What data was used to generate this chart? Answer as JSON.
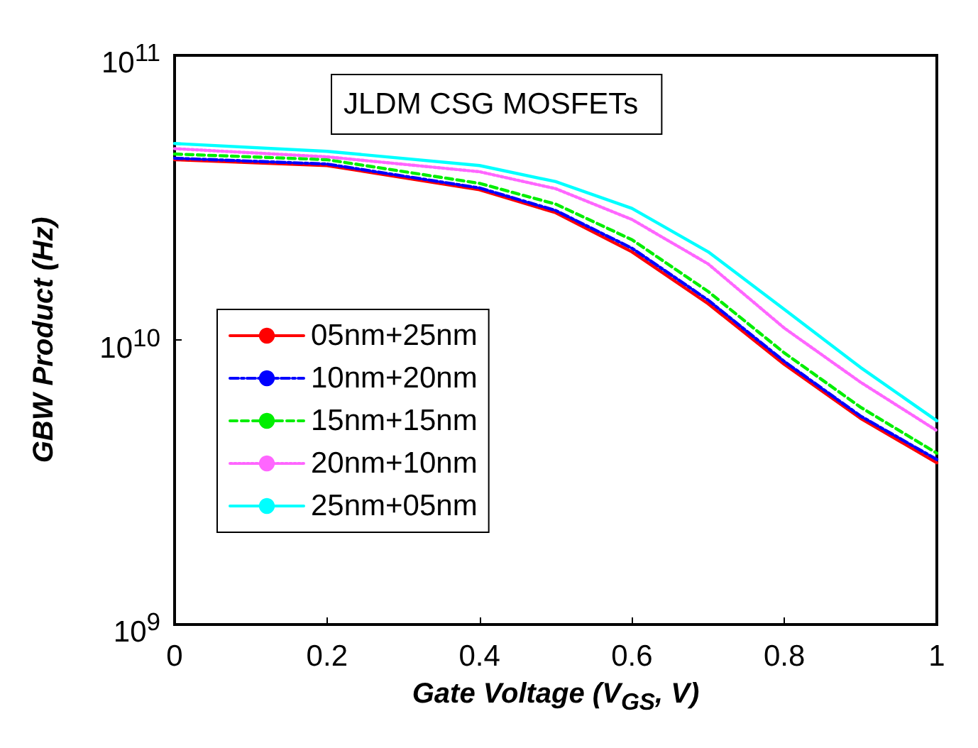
{
  "chart_data": {
    "type": "line",
    "annotations": [
      "JLDM CSG MOSFETs"
    ],
    "xlabel": "Gate Voltage (V$_{GS}$, V)",
    "ylabel": "GBW Product (Hz)",
    "x": [
      0,
      0.2,
      0.4,
      0.5,
      0.6,
      0.7,
      0.8,
      0.9,
      1
    ],
    "series": [
      {
        "name": "05nm+25nm",
        "color": "#ff0000",
        "line_style": "solid",
        "values": [
          43000000000.0,
          41000000000.0,
          33700000000.0,
          28000000000.0,
          20400000000.0,
          13400000000.0,
          8200000000.0,
          5300000000.0,
          3700000000.0
        ]
      },
      {
        "name": "10nm+20nm",
        "color": "#0000ff",
        "line_style": "dashdot",
        "values": [
          43500000000.0,
          41500000000.0,
          34200000000.0,
          28500000000.0,
          21000000000.0,
          13800000000.0,
          8400000000.0,
          5400000000.0,
          3800000000.0
        ]
      },
      {
        "name": "15nm+15nm",
        "color": "#00ee00",
        "line_style": "dashed",
        "values": [
          45000000000.0,
          43000000000.0,
          35500000000.0,
          30000000000.0,
          22500000000.0,
          14800000000.0,
          9000000000.0,
          5800000000.0,
          4000000000.0
        ]
      },
      {
        "name": "20nm+10nm",
        "color": "#ff66ff",
        "line_style": "dotted",
        "values": [
          47000000000.0,
          44000000000.0,
          39000000000.0,
          34000000000.0,
          26500000000.0,
          18500000000.0,
          11000000000.0,
          7100000000.0,
          4800000000.0
        ]
      },
      {
        "name": "25nm+05nm",
        "color": "#00ffff",
        "line_style": "solid",
        "values": [
          49000000000.0,
          46000000000.0,
          41000000000.0,
          36000000000.0,
          29000000000.0,
          20400000000.0,
          12800000000.0,
          8000000000.0,
          5200000000.0
        ]
      }
    ],
    "log": "y",
    "xlim": [
      0,
      1
    ],
    "xticks": [
      0,
      0.2,
      0.4,
      0.6,
      0.8,
      1
    ],
    "ylim": [
      1000000000.0,
      100000000000.0
    ],
    "yticks": [
      {
        "value": 1000000000.0,
        "label": "10$^{9}$"
      },
      {
        "value": 10000000000.0,
        "label": "10$^{10}$"
      },
      {
        "value": 100000000000.0,
        "label": "10$^{11}$"
      }
    ],
    "grid": false,
    "legend": "left",
    "marker": "none"
  }
}
